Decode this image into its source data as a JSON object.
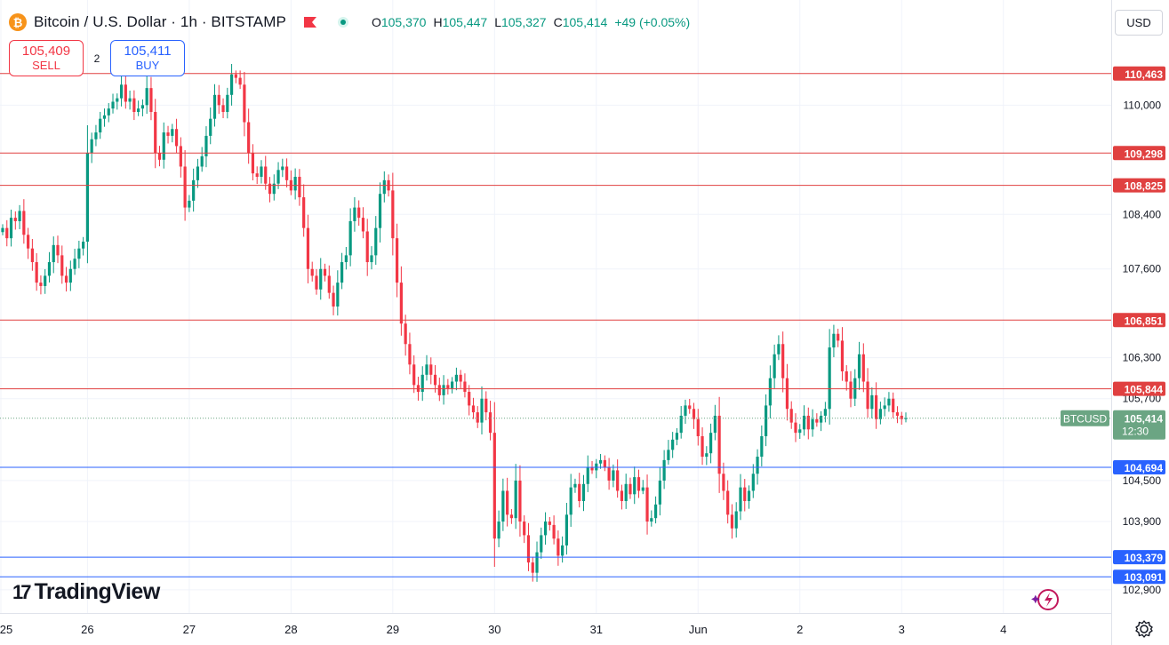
{
  "header": {
    "coin_icon": "bitcoin-icon",
    "coin_symbol": "₿",
    "title": "Bitcoin / U.S. Dollar · 1h · BITSTAMP",
    "ohlc": {
      "o_label": "O",
      "o": "105,370",
      "h_label": "H",
      "h": "105,447",
      "l_label": "L",
      "l": "105,327",
      "c_label": "C",
      "c": "105,414",
      "change": "+49 (+0.05%)"
    }
  },
  "trade": {
    "sell_price": "105,409",
    "sell_label": "SELL",
    "spread": "2",
    "buy_price": "105,411",
    "buy_label": "BUY"
  },
  "currency": "USD",
  "brand": {
    "name": "TradingView",
    "mark": "17"
  },
  "colors": {
    "up": "#089981",
    "down": "#f23645",
    "resistance": "#e04040",
    "support": "#2962ff",
    "grid": "#f0f3fa",
    "current": "#6ba583"
  },
  "chart_data": {
    "type": "candlestick",
    "symbol": "BTCUSD",
    "timeframe": "1h",
    "x_ticks": [
      {
        "label": "25",
        "index": -4
      },
      {
        "label": "26",
        "index": 20
      },
      {
        "label": "27",
        "index": 44
      },
      {
        "label": "28",
        "index": 68
      },
      {
        "label": "29",
        "index": 92
      },
      {
        "label": "30",
        "index": 116
      },
      {
        "label": "31",
        "index": 140
      },
      {
        "label": "Jun",
        "index": 164
      },
      {
        "label": "2",
        "index": 188
      },
      {
        "label": "3",
        "index": 212
      },
      {
        "label": "4",
        "index": 236
      }
    ],
    "y_ticks": [
      110000,
      108400,
      107600,
      106300,
      105700,
      104500,
      103900,
      102900
    ],
    "y_tick_labels": [
      "110,000",
      "108,400",
      "107,600",
      "106,300",
      "105,700",
      "104,500",
      "103,900",
      "102,900"
    ],
    "ylim": [
      102560,
      111540
    ],
    "horizontal_levels": [
      {
        "value": 110463,
        "label": "110,463",
        "kind": "resistance"
      },
      {
        "value": 109298,
        "label": "109,298",
        "kind": "resistance"
      },
      {
        "value": 108825,
        "label": "108,825",
        "kind": "resistance"
      },
      {
        "value": 106851,
        "label": "106,851",
        "kind": "resistance"
      },
      {
        "value": 105844,
        "label": "105,844",
        "kind": "resistance"
      },
      {
        "value": 104694,
        "label": "104,694",
        "kind": "support"
      },
      {
        "value": 103379,
        "label": "103,379",
        "kind": "support"
      },
      {
        "value": 103091,
        "label": "103,091",
        "kind": "support"
      }
    ],
    "current_price": {
      "symbol_label": "BTCUSD",
      "value": 105414,
      "label": "105,414",
      "countdown": "12:30"
    },
    "closes": [
      108200,
      108050,
      108350,
      108300,
      108450,
      108100,
      107900,
      107700,
      107400,
      107350,
      107500,
      107700,
      107950,
      107800,
      107500,
      107400,
      107600,
      107750,
      107900,
      108000,
      109300,
      109500,
      109600,
      109800,
      109850,
      109950,
      110050,
      110100,
      110300,
      110050,
      110100,
      109900,
      109950,
      110000,
      110250,
      109900,
      109300,
      109200,
      109600,
      109550,
      109650,
      109400,
      109100,
      108500,
      108600,
      108900,
      109100,
      109250,
      109550,
      109800,
      110150,
      110000,
      109900,
      110150,
      110450,
      110400,
      110300,
      109750,
      109300,
      109000,
      108950,
      109100,
      108850,
      108700,
      108850,
      109050,
      109100,
      108900,
      108750,
      108950,
      108650,
      108200,
      107600,
      107500,
      107300,
      107600,
      107500,
      107250,
      107050,
      107400,
      107700,
      107800,
      108300,
      108500,
      108350,
      108150,
      107700,
      107800,
      108200,
      108700,
      108900,
      108750,
      108050,
      107400,
      106800,
      106500,
      106200,
      105900,
      105800,
      106050,
      106200,
      106050,
      105900,
      105750,
      105900,
      105850,
      105950,
      106050,
      105950,
      105800,
      105600,
      105500,
      105350,
      105700,
      105500,
      105200,
      103650,
      103900,
      104350,
      104000,
      103950,
      104500,
      103900,
      103700,
      103300,
      103150,
      103450,
      103700,
      103900,
      103850,
      103650,
      103400,
      103550,
      104000,
      104400,
      104450,
      104200,
      104450,
      104700,
      104650,
      104750,
      104800,
      104700,
      104500,
      104650,
      104350,
      104200,
      104450,
      104300,
      104550,
      104350,
      104400,
      103900,
      103950,
      104150,
      104500,
      104800,
      104950,
      105100,
      105200,
      105450,
      105600,
      105550,
      105400,
      105150,
      104850,
      104900,
      105200,
      105450,
      104600,
      104350,
      104000,
      103800,
      104050,
      104400,
      104200,
      104350,
      104600,
      104850,
      105150,
      105600,
      106000,
      106350,
      106500,
      106000,
      105550,
      105350,
      105200,
      105250,
      105450,
      105250,
      105400,
      105350,
      105450,
      105550,
      106450,
      106650,
      106550,
      106100,
      105950,
      105700,
      106000,
      106350,
      105950,
      105550,
      105750,
      105400,
      105550,
      105600,
      105700,
      105500,
      105450,
      105400,
      105414
    ]
  }
}
